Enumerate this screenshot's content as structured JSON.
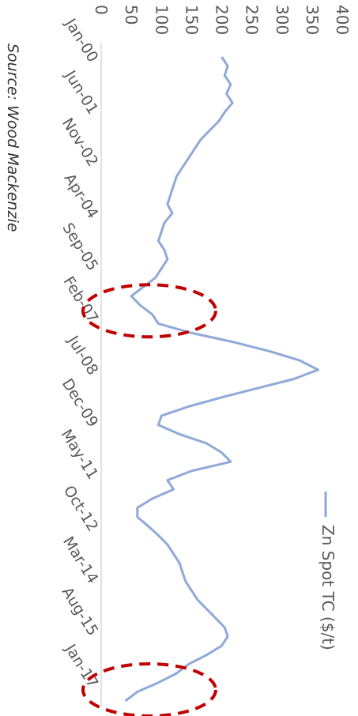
{
  "chart_data": {
    "type": "line",
    "orientation": "rotated 90 degrees clockwise",
    "source_note": "Source: Wood Mackenzie",
    "legend_position": "right",
    "series": [
      {
        "name": "Zn Spot TC ($/t)",
        "color": "#8fa9d8",
        "values": [
          [
            2000.0,
            200
          ],
          [
            2000.25,
            210
          ],
          [
            2000.5,
            205
          ],
          [
            2000.75,
            215
          ],
          [
            2001.0,
            208
          ],
          [
            2001.25,
            218
          ],
          [
            2001.5,
            205
          ],
          [
            2001.75,
            195
          ],
          [
            2002.0,
            180
          ],
          [
            2002.25,
            165
          ],
          [
            2002.5,
            155
          ],
          [
            2002.75,
            145
          ],
          [
            2003.0,
            135
          ],
          [
            2003.25,
            125
          ],
          [
            2003.5,
            120
          ],
          [
            2003.75,
            115
          ],
          [
            2004.0,
            110
          ],
          [
            2004.25,
            118
          ],
          [
            2004.5,
            105
          ],
          [
            2004.75,
            100
          ],
          [
            2005.0,
            95
          ],
          [
            2005.25,
            105
          ],
          [
            2005.5,
            110
          ],
          [
            2005.75,
            100
          ],
          [
            2006.0,
            90
          ],
          [
            2006.25,
            70
          ],
          [
            2006.5,
            50
          ],
          [
            2006.75,
            65
          ],
          [
            2007.0,
            85
          ],
          [
            2007.25,
            95
          ],
          [
            2007.5,
            150
          ],
          [
            2007.75,
            220
          ],
          [
            2008.0,
            280
          ],
          [
            2008.25,
            330
          ],
          [
            2008.5,
            360
          ],
          [
            2008.75,
            320
          ],
          [
            2009.0,
            260
          ],
          [
            2009.25,
            200
          ],
          [
            2009.5,
            145
          ],
          [
            2009.75,
            100
          ],
          [
            2010.0,
            95
          ],
          [
            2010.25,
            130
          ],
          [
            2010.5,
            175
          ],
          [
            2010.75,
            200
          ],
          [
            2011.0,
            215
          ],
          [
            2011.25,
            150
          ],
          [
            2011.5,
            110
          ],
          [
            2011.75,
            120
          ],
          [
            2012.0,
            85
          ],
          [
            2012.25,
            60
          ],
          [
            2012.5,
            60
          ],
          [
            2012.75,
            78
          ],
          [
            2013.0,
            95
          ],
          [
            2013.25,
            110
          ],
          [
            2013.5,
            120
          ],
          [
            2013.75,
            130
          ],
          [
            2014.0,
            135
          ],
          [
            2014.25,
            140
          ],
          [
            2014.5,
            150
          ],
          [
            2014.75,
            160
          ],
          [
            2015.0,
            175
          ],
          [
            2015.25,
            190
          ],
          [
            2015.5,
            205
          ],
          [
            2015.75,
            210
          ],
          [
            2016.0,
            200
          ],
          [
            2016.25,
            175
          ],
          [
            2016.5,
            145
          ],
          [
            2016.75,
            125
          ],
          [
            2017.0,
            95
          ],
          [
            2017.25,
            60
          ],
          [
            2017.5,
            40
          ]
        ]
      }
    ],
    "x_axis": {
      "type": "date",
      "tick_labels": [
        "Jan-00",
        "Jun-01",
        "Nov-02",
        "Apr-04",
        "Sep-05",
        "Feb-07",
        "Jul-08",
        "Dec-09",
        "May-11",
        "Oct-12",
        "Mar-14",
        "Aug-15",
        "Jan-17"
      ],
      "tick_values": [
        2000.0,
        2001.4167,
        2002.8333,
        2004.25,
        2005.6667,
        2007.0833,
        2008.5,
        2009.9167,
        2011.3333,
        2012.75,
        2014.1667,
        2015.5833,
        2017.0
      ],
      "range": [
        2000.0,
        2017.5
      ]
    },
    "y_axis": {
      "range": [
        0,
        400
      ],
      "ticks": [
        0,
        50,
        100,
        150,
        200,
        250,
        300,
        350,
        400
      ]
    },
    "gridlines": false,
    "annotations": [
      {
        "type": "dashed-ellipse",
        "color": "#c00000",
        "around_x": "Feb-07",
        "x_center": 2006.9,
        "y_center": 80
      },
      {
        "type": "dashed-ellipse",
        "color": "#c00000",
        "around_x": "Jan-17",
        "x_center": 2017.2,
        "y_center": 80
      }
    ]
  }
}
